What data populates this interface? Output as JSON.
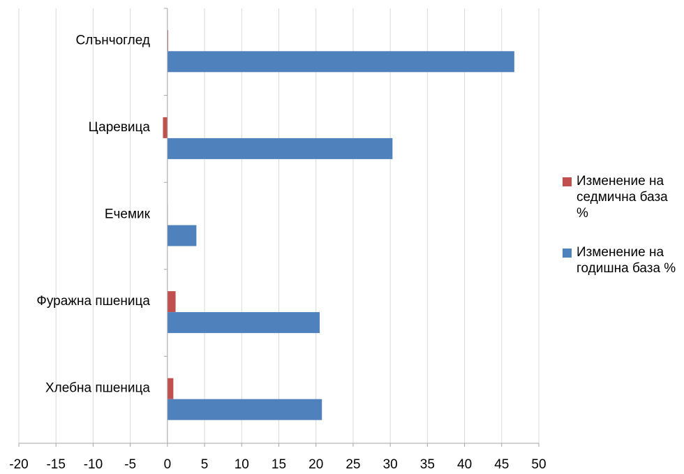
{
  "chart_data": {
    "type": "bar",
    "orientation": "horizontal",
    "categories": [
      "Слънчоглед",
      "Царевица",
      "Ечемик",
      "Фуражна пшеница",
      "Хлебна пшеница"
    ],
    "series": [
      {
        "name": "Изменение на седмична база %",
        "color": "#c0504d",
        "values": [
          0.1,
          -0.6,
          0.0,
          1.1,
          0.8
        ]
      },
      {
        "name": "Изменение на годишна база %",
        "color": "#4f81bd",
        "values": [
          46.7,
          30.3,
          3.9,
          20.5,
          20.8
        ]
      }
    ],
    "xlim": [
      -20,
      50
    ],
    "xticks": [
      "-20",
      "-15",
      "-10",
      "-5",
      "0",
      "5",
      "10",
      "15",
      "20",
      "25",
      "30",
      "35",
      "40",
      "45",
      "50"
    ],
    "grid": true,
    "legend_position": "right"
  }
}
